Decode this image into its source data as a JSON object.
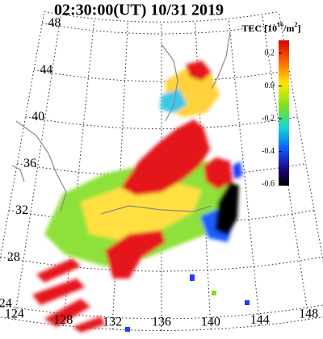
{
  "header": {
    "title": "02:30:00(UT)  10/31 2019"
  },
  "colorbar": {
    "label_start": "TEC [10",
    "label_exp1": "16",
    "label_mid": "/m",
    "label_exp2": "2",
    "label_end": "]",
    "ticks": [
      "0.2",
      "0.0",
      "-0.2",
      "-0.4",
      "-0.6"
    ]
  },
  "map": {
    "lat_labels": [
      "48",
      "44",
      "40",
      "36",
      "32",
      "28",
      "24"
    ],
    "lon_labels": [
      "124",
      "128",
      "132",
      "136",
      "140",
      "144",
      "148"
    ]
  }
}
